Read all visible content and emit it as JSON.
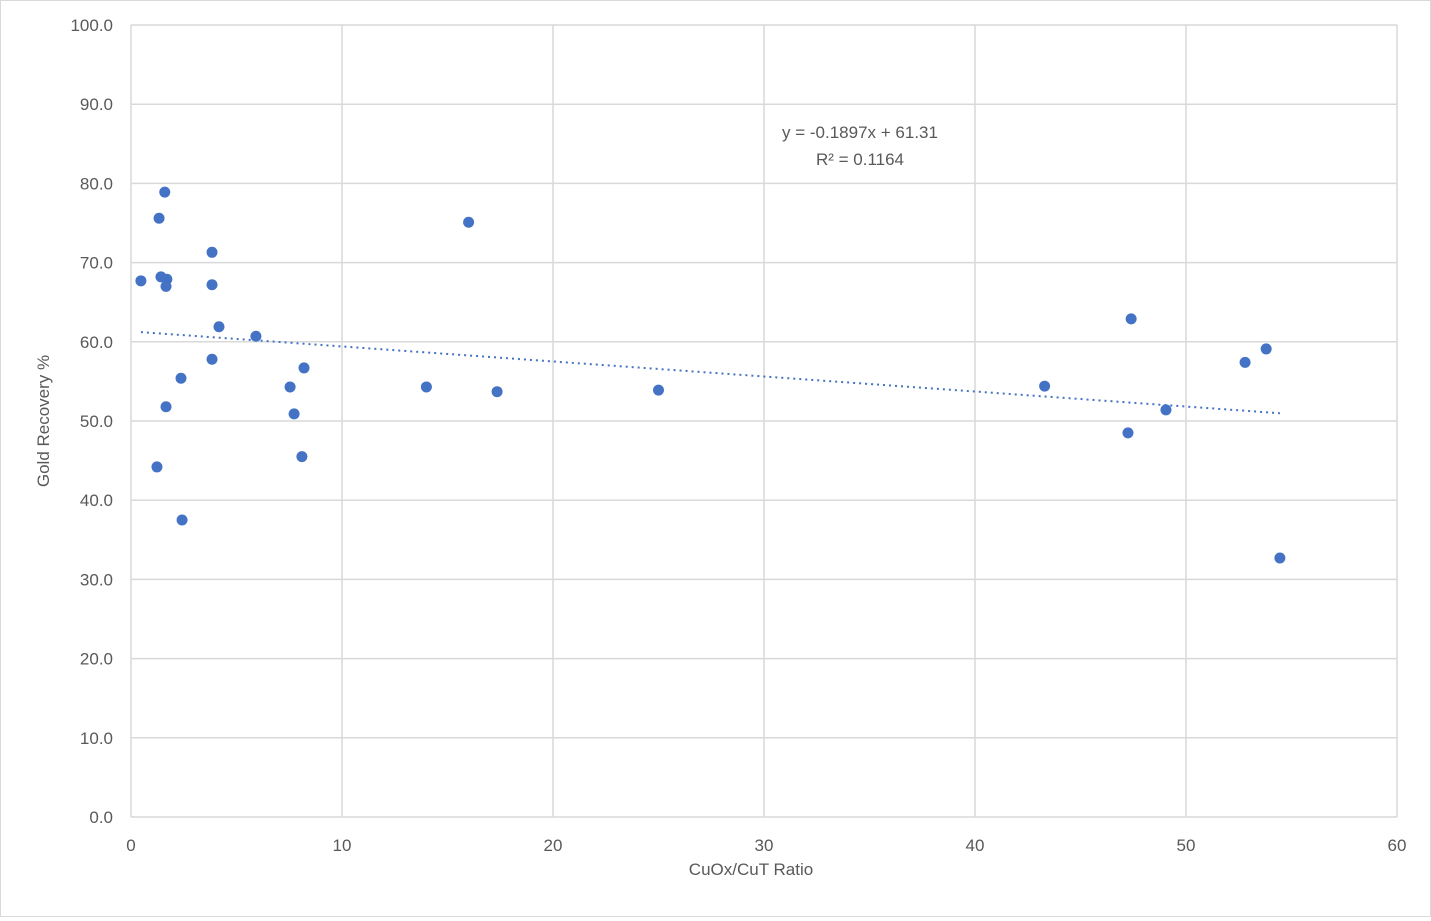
{
  "chart_data": {
    "type": "scatter",
    "title": "",
    "xlabel": "CuOx/CuT Ratio",
    "ylabel": "Gold Recovery %",
    "xlim": [
      0,
      60
    ],
    "ylim": [
      0,
      100
    ],
    "x_ticks": [
      "0",
      "10",
      "20",
      "30",
      "40",
      "50",
      "60"
    ],
    "y_ticks": [
      "0.0",
      "10.0",
      "20.0",
      "30.0",
      "40.0",
      "50.0",
      "60.0",
      "70.0",
      "80.0",
      "90.0",
      "100.0"
    ],
    "grid": true,
    "marker_color": "#4472C4",
    "points": [
      {
        "x": 0.47,
        "y": 67.7
      },
      {
        "x": 1.6,
        "y": 78.9
      },
      {
        "x": 1.33,
        "y": 75.6
      },
      {
        "x": 1.42,
        "y": 68.2
      },
      {
        "x": 1.7,
        "y": 67.9
      },
      {
        "x": 1.66,
        "y": 67.0
      },
      {
        "x": 3.84,
        "y": 71.3
      },
      {
        "x": 3.84,
        "y": 67.2
      },
      {
        "x": 4.17,
        "y": 61.9
      },
      {
        "x": 3.84,
        "y": 57.8
      },
      {
        "x": 5.92,
        "y": 60.7
      },
      {
        "x": 2.37,
        "y": 55.4
      },
      {
        "x": 1.66,
        "y": 51.8
      },
      {
        "x": 1.23,
        "y": 44.2
      },
      {
        "x": 2.42,
        "y": 37.5
      },
      {
        "x": 7.54,
        "y": 54.3
      },
      {
        "x": 8.2,
        "y": 56.7
      },
      {
        "x": 7.73,
        "y": 50.9
      },
      {
        "x": 8.1,
        "y": 45.5
      },
      {
        "x": 14.0,
        "y": 54.3
      },
      {
        "x": 16.0,
        "y": 75.1
      },
      {
        "x": 17.35,
        "y": 53.7
      },
      {
        "x": 25.0,
        "y": 53.9
      },
      {
        "x": 43.3,
        "y": 54.4
      },
      {
        "x": 47.4,
        "y": 62.9
      },
      {
        "x": 47.25,
        "y": 48.5
      },
      {
        "x": 49.05,
        "y": 51.4
      },
      {
        "x": 52.8,
        "y": 57.4
      },
      {
        "x": 53.8,
        "y": 59.1
      },
      {
        "x": 54.45,
        "y": 32.7
      }
    ],
    "trendline": {
      "type": "linear",
      "slope": -0.1897,
      "intercept": 61.31,
      "x_range": [
        0.47,
        54.45
      ],
      "equation_label": "y = -0.1897x + 61.31",
      "r2_label": "R² = 0.1164"
    }
  }
}
